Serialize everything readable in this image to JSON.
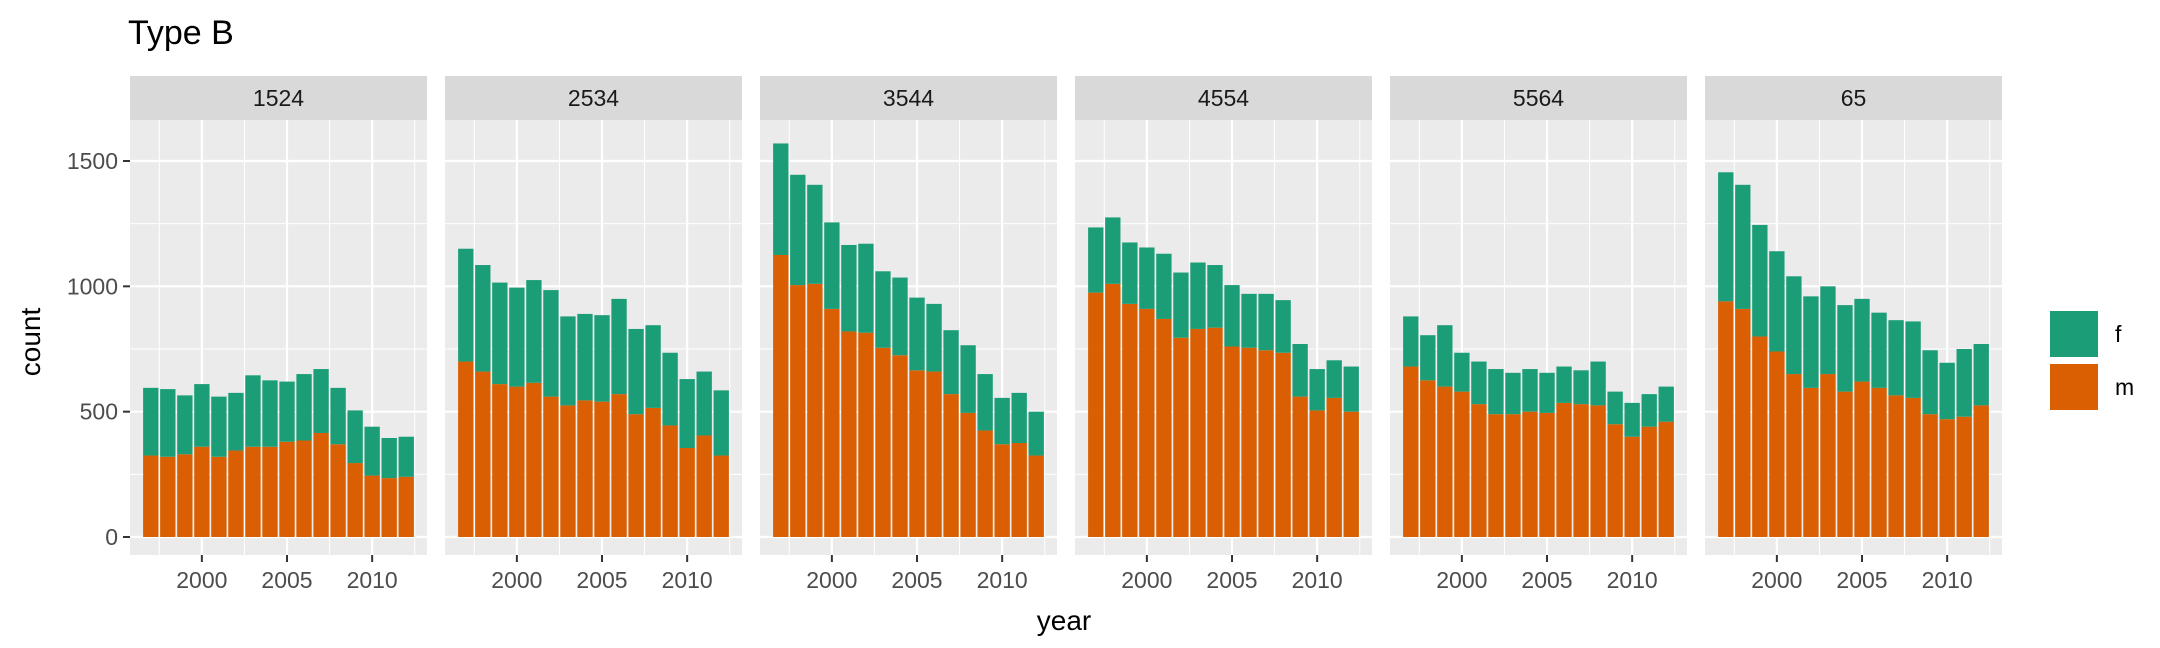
{
  "chart_data": {
    "type": "bar",
    "stacked": true,
    "title": "Type B",
    "xlabel": "year",
    "ylabel": "count",
    "years": [
      1997,
      1998,
      1999,
      2000,
      2001,
      2002,
      2003,
      2004,
      2005,
      2006,
      2007,
      2008,
      2009,
      2010,
      2011,
      2012
    ],
    "xticks": [
      2000,
      2005,
      2010
    ],
    "ylim": [
      0,
      1650
    ],
    "yticks": [
      0,
      500,
      1000,
      1500
    ],
    "grid": true,
    "legend": {
      "position": "right",
      "entries": [
        {
          "label": "f",
          "color": "#1b9e77"
        },
        {
          "label": "m",
          "color": "#d95f02"
        }
      ]
    },
    "panels": [
      {
        "label": "1524",
        "m": [
          325,
          320,
          330,
          360,
          320,
          345,
          360,
          360,
          380,
          385,
          415,
          370,
          295,
          245,
          235,
          240
        ],
        "total": [
          595,
          590,
          565,
          610,
          560,
          575,
          645,
          625,
          620,
          650,
          670,
          595,
          505,
          440,
          395,
          400
        ]
      },
      {
        "label": "2534",
        "m": [
          700,
          660,
          610,
          600,
          615,
          560,
          525,
          545,
          540,
          570,
          490,
          515,
          445,
          355,
          405,
          325
        ],
        "total": [
          1150,
          1085,
          1015,
          995,
          1025,
          985,
          880,
          890,
          885,
          950,
          830,
          845,
          735,
          630,
          660,
          585
        ]
      },
      {
        "label": "3544",
        "m": [
          1125,
          1005,
          1010,
          910,
          820,
          815,
          755,
          725,
          665,
          660,
          570,
          495,
          425,
          370,
          375,
          325
        ],
        "total": [
          1570,
          1445,
          1405,
          1255,
          1165,
          1170,
          1060,
          1035,
          955,
          930,
          825,
          765,
          650,
          555,
          575,
          500
        ]
      },
      {
        "label": "4554",
        "m": [
          975,
          1010,
          930,
          910,
          870,
          795,
          830,
          835,
          760,
          755,
          745,
          735,
          560,
          505,
          555,
          500
        ],
        "total": [
          1235,
          1275,
          1175,
          1155,
          1130,
          1055,
          1095,
          1085,
          1005,
          970,
          970,
          945,
          770,
          670,
          705,
          680
        ]
      },
      {
        "label": "5564",
        "m": [
          680,
          625,
          600,
          580,
          530,
          490,
          490,
          500,
          495,
          535,
          530,
          525,
          450,
          400,
          440,
          460
        ],
        "total": [
          880,
          805,
          845,
          735,
          700,
          670,
          655,
          670,
          655,
          680,
          665,
          700,
          580,
          535,
          570,
          600
        ]
      },
      {
        "label": "65",
        "m": [
          940,
          910,
          800,
          740,
          650,
          595,
          650,
          580,
          620,
          595,
          565,
          555,
          490,
          470,
          480,
          525
        ],
        "total": [
          1455,
          1405,
          1245,
          1140,
          1040,
          960,
          1000,
          925,
          950,
          895,
          865,
          860,
          745,
          695,
          750,
          770
        ]
      }
    ]
  }
}
